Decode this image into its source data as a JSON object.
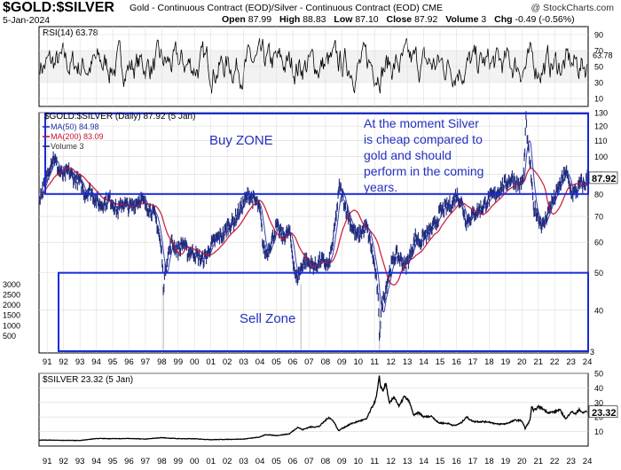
{
  "header": {
    "symbol": "$GOLD:$SILVER",
    "description": "Gold - Continuous Contract (EOD)/Silver - Continuous Contract (EOD)",
    "exchange": "CME",
    "date": "5-Jan-2024",
    "open_label": "Open",
    "open": "87.99",
    "high_label": "High",
    "high": "88.83",
    "low_label": "Low",
    "low": "87.10",
    "close_label": "Close",
    "close": "87.92",
    "volume_label": "Volume",
    "volume": "3",
    "chg_label": "Chg",
    "chg": "-0.49 (-0.56%)",
    "watermark": "@ StockCharts.com"
  },
  "colors": {
    "price": "#1f2a7a",
    "ma50": "#2430a8",
    "ma200": "#c8102e",
    "box": "#1a2ad8",
    "annotation": "#2430c0",
    "grid": "#d9d9d9"
  },
  "chart_data": [
    {
      "type": "line",
      "name": "rsi-panel",
      "legend": "RSI(14) 63.78",
      "yticks": [
        10,
        30,
        50,
        70,
        90
      ],
      "ylim": [
        0,
        100
      ],
      "current_label": "63.78",
      "current": 63.78
    },
    {
      "type": "line",
      "name": "ratio-panel",
      "title": "$GOLD:$SILVER (Daily) 87.92 (5 Jan)",
      "legend": [
        "MA(50) 84.98",
        "MA(200) 83.09",
        "Volume 3"
      ],
      "x_categories": [
        "91",
        "92",
        "93",
        "94",
        "95",
        "96",
        "97",
        "98",
        "99",
        "00",
        "01",
        "02",
        "03",
        "04",
        "05",
        "06",
        "07",
        "08",
        "09",
        "10",
        "11",
        "12",
        "13",
        "14",
        "15",
        "16",
        "17",
        "18",
        "19",
        "20",
        "21",
        "22",
        "23",
        "24"
      ],
      "xlim": [
        1990.5,
        2024.05
      ],
      "ylim": [
        31,
        130
      ],
      "log": true,
      "yticks": [
        40,
        50,
        60,
        70,
        80,
        90,
        100,
        110,
        120,
        130
      ],
      "volume_ticks": [
        500,
        1000,
        1500,
        2000,
        2500,
        3000
      ],
      "last_value_label": "87.92",
      "last_value": 87.92,
      "ratio_points": [
        [
          1990.5,
          78
        ],
        [
          1990.9,
          86
        ],
        [
          1991.2,
          96
        ],
        [
          1991.4,
          100
        ],
        [
          1991.7,
          92
        ],
        [
          1992.0,
          89
        ],
        [
          1992.3,
          92
        ],
        [
          1992.6,
          88
        ],
        [
          1993.0,
          86
        ],
        [
          1993.3,
          80
        ],
        [
          1993.6,
          82
        ],
        [
          1993.9,
          78
        ],
        [
          1994.2,
          75
        ],
        [
          1994.5,
          76
        ],
        [
          1994.8,
          78
        ],
        [
          1995.0,
          76
        ],
        [
          1995.3,
          72
        ],
        [
          1995.6,
          76
        ],
        [
          1996.0,
          74
        ],
        [
          1996.3,
          75
        ],
        [
          1996.7,
          78
        ],
        [
          1997.0,
          75
        ],
        [
          1997.3,
          73
        ],
        [
          1997.6,
          70
        ],
        [
          1997.8,
          64
        ],
        [
          1998.0,
          56
        ],
        [
          1998.1,
          46
        ],
        [
          1998.3,
          54
        ],
        [
          1998.6,
          60
        ],
        [
          1999.0,
          57
        ],
        [
          1999.3,
          60
        ],
        [
          1999.6,
          56
        ],
        [
          1999.8,
          57
        ],
        [
          2000.0,
          56
        ],
        [
          2000.5,
          54
        ],
        [
          2000.8,
          56
        ],
        [
          2001.0,
          59
        ],
        [
          2001.5,
          62
        ],
        [
          2001.8,
          63
        ],
        [
          2002.0,
          66
        ],
        [
          2002.4,
          68
        ],
        [
          2002.7,
          72
        ],
        [
          2003.0,
          76
        ],
        [
          2003.3,
          80
        ],
        [
          2003.5,
          78
        ],
        [
          2003.8,
          76
        ],
        [
          2004.0,
          72
        ],
        [
          2004.2,
          58
        ],
        [
          2004.4,
          56
        ],
        [
          2004.8,
          62
        ],
        [
          2005.0,
          66
        ],
        [
          2005.4,
          62
        ],
        [
          2005.8,
          64
        ],
        [
          2006.0,
          55
        ],
        [
          2006.2,
          48
        ],
        [
          2006.4,
          50
        ],
        [
          2006.7,
          54
        ],
        [
          2007.0,
          53
        ],
        [
          2007.4,
          52
        ],
        [
          2007.7,
          54
        ],
        [
          2008.0,
          53
        ],
        [
          2008.2,
          52
        ],
        [
          2008.5,
          62
        ],
        [
          2008.75,
          76
        ],
        [
          2008.85,
          84
        ],
        [
          2009.0,
          80
        ],
        [
          2009.3,
          72
        ],
        [
          2009.6,
          66
        ],
        [
          2009.9,
          62
        ],
        [
          2010.2,
          64
        ],
        [
          2010.5,
          66
        ],
        [
          2010.8,
          58
        ],
        [
          2011.0,
          52
        ],
        [
          2011.2,
          44
        ],
        [
          2011.3,
          34
        ],
        [
          2011.4,
          40
        ],
        [
          2011.6,
          44
        ],
        [
          2011.8,
          48
        ],
        [
          2012.0,
          52
        ],
        [
          2012.3,
          56
        ],
        [
          2012.6,
          54
        ],
        [
          2012.9,
          52
        ],
        [
          2013.2,
          56
        ],
        [
          2013.5,
          62
        ],
        [
          2013.8,
          60
        ],
        [
          2014.0,
          62
        ],
        [
          2014.4,
          64
        ],
        [
          2014.8,
          68
        ],
        [
          2015.0,
          72
        ],
        [
          2015.4,
          74
        ],
        [
          2015.8,
          76
        ],
        [
          2016.0,
          80
        ],
        [
          2016.3,
          76
        ],
        [
          2016.6,
          68
        ],
        [
          2016.9,
          70
        ],
        [
          2017.2,
          72
        ],
        [
          2017.6,
          74
        ],
        [
          2018.0,
          78
        ],
        [
          2018.4,
          80
        ],
        [
          2018.8,
          84
        ],
        [
          2019.1,
          86
        ],
        [
          2019.4,
          88
        ],
        [
          2019.6,
          86
        ],
        [
          2019.9,
          84
        ],
        [
          2020.1,
          88
        ],
        [
          2020.2,
          110
        ],
        [
          2020.25,
          125
        ],
        [
          2020.35,
          108
        ],
        [
          2020.5,
          96
        ],
        [
          2020.7,
          74
        ],
        [
          2020.9,
          72
        ],
        [
          2021.1,
          68
        ],
        [
          2021.3,
          66
        ],
        [
          2021.5,
          70
        ],
        [
          2021.8,
          76
        ],
        [
          2022.0,
          78
        ],
        [
          2022.4,
          86
        ],
        [
          2022.7,
          92
        ],
        [
          2022.9,
          84
        ],
        [
          2023.1,
          80
        ],
        [
          2023.4,
          82
        ],
        [
          2023.6,
          86
        ],
        [
          2023.8,
          84
        ],
        [
          2024.0,
          87.92
        ]
      ],
      "annotations": [
        {
          "label": "Buy ZONE",
          "text": "Buy ZONE"
        },
        {
          "label": "Sell Zone",
          "text": "Sell Zone"
        },
        {
          "label": "comment",
          "text": "At the moment Silver is cheap compared to gold and should perform in the coming years."
        }
      ],
      "buy_zone": {
        "y_from": 80,
        "y_to": 130
      },
      "sell_zone": {
        "y_from": 31,
        "y_to": 50
      }
    },
    {
      "type": "line",
      "name": "silver-panel",
      "legend": "$SILVER 23.32 (5 Jan)",
      "xlim": [
        1990.5,
        2024.05
      ],
      "ylim": [
        0,
        50
      ],
      "yticks": [
        10,
        20,
        30,
        40,
        50
      ],
      "last_value_label": "23.32",
      "last_value": 23.32,
      "points": [
        [
          1990.5,
          4.1
        ],
        [
          1991.5,
          4.0
        ],
        [
          1992.5,
          3.9
        ],
        [
          1993.0,
          3.8
        ],
        [
          1993.5,
          4.5
        ],
        [
          1994.0,
          5.2
        ],
        [
          1995.0,
          5.1
        ],
        [
          1996.0,
          5.2
        ],
        [
          1997.0,
          4.8
        ],
        [
          1998.0,
          5.8
        ],
        [
          1998.5,
          5.4
        ],
        [
          1999.0,
          5.1
        ],
        [
          2000.0,
          5.0
        ],
        [
          2001.0,
          4.4
        ],
        [
          2002.0,
          4.6
        ],
        [
          2003.0,
          4.8
        ],
        [
          2004.0,
          6.2
        ],
        [
          2004.3,
          7.8
        ],
        [
          2005.0,
          7.2
        ],
        [
          2005.8,
          8.4
        ],
        [
          2006.3,
          13.0
        ],
        [
          2006.6,
          11.2
        ],
        [
          2007.0,
          13.0
        ],
        [
          2007.6,
          13.4
        ],
        [
          2008.2,
          19.8
        ],
        [
          2008.5,
          17.0
        ],
        [
          2008.8,
          10.5
        ],
        [
          2009.0,
          12.0
        ],
        [
          2009.6,
          15.5
        ],
        [
          2010.0,
          17.0
        ],
        [
          2010.5,
          18.5
        ],
        [
          2010.9,
          28.0
        ],
        [
          2011.1,
          33.0
        ],
        [
          2011.3,
          48.0
        ],
        [
          2011.35,
          42.0
        ],
        [
          2011.5,
          38.0
        ],
        [
          2011.7,
          43.0
        ],
        [
          2011.9,
          29.0
        ],
        [
          2012.2,
          34.0
        ],
        [
          2012.5,
          27.0
        ],
        [
          2012.8,
          34.0
        ],
        [
          2013.1,
          31.0
        ],
        [
          2013.4,
          21.0
        ],
        [
          2013.7,
          23.0
        ],
        [
          2014.0,
          20.0
        ],
        [
          2014.5,
          20.5
        ],
        [
          2014.9,
          16.0
        ],
        [
          2015.5,
          15.5
        ],
        [
          2015.9,
          14.0
        ],
        [
          2016.3,
          16.0
        ],
        [
          2016.6,
          20.0
        ],
        [
          2017.0,
          17.0
        ],
        [
          2017.5,
          16.8
        ],
        [
          2018.0,
          16.6
        ],
        [
          2018.5,
          15.0
        ],
        [
          2019.0,
          15.3
        ],
        [
          2019.6,
          17.8
        ],
        [
          2020.0,
          17.5
        ],
        [
          2020.2,
          12.0
        ],
        [
          2020.5,
          18.0
        ],
        [
          2020.6,
          28.0
        ],
        [
          2020.7,
          24.0
        ],
        [
          2021.0,
          27.0
        ],
        [
          2021.3,
          25.5
        ],
        [
          2021.6,
          23.0
        ],
        [
          2022.0,
          23.5
        ],
        [
          2022.3,
          25.0
        ],
        [
          2022.7,
          18.5
        ],
        [
          2023.0,
          23.8
        ],
        [
          2023.3,
          22.0
        ],
        [
          2023.5,
          25.5
        ],
        [
          2023.7,
          22.5
        ],
        [
          2023.9,
          24.0
        ],
        [
          2024.0,
          23.32
        ]
      ]
    }
  ]
}
